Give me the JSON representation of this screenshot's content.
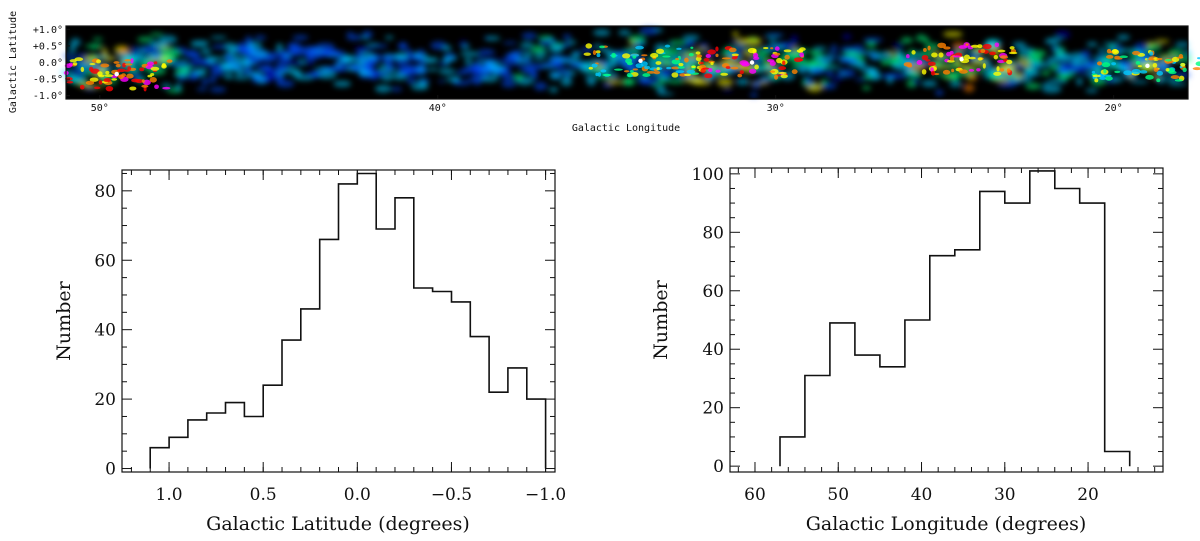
{
  "chart_data": [
    {
      "type": "heatmap",
      "title": "",
      "xlabel": "Galactic Longitude",
      "ylabel": "Galactic Latitude",
      "xlim": [
        51,
        17.8
      ],
      "ylim": [
        -1.1,
        1.1
      ],
      "x_ticks": [
        50,
        40,
        30,
        20
      ],
      "x_tick_labels": [
        "50°",
        "40°",
        "30°",
        "20°"
      ],
      "y_ticks": [
        1.0,
        0.5,
        0.0,
        -0.5,
        -1.0
      ],
      "y_tick_labels": [
        "+1.0°",
        "+0.5°",
        "0.0°",
        "-0.5°",
        "-1.0°"
      ],
      "colormap": [
        "#000000",
        "#0000b4",
        "#0050ff",
        "#00c8ff",
        "#00ff80",
        "#ffff00",
        "#ff8000",
        "#ff0000",
        "#ff00ff",
        "#ffffff"
      ],
      "bright_regions": [
        {
          "l": 49.5,
          "b": -0.35,
          "level": "peak"
        },
        {
          "l": 30.7,
          "b": 0.0,
          "level": "peak"
        },
        {
          "l": 24.5,
          "b": 0.1,
          "level": "peak"
        },
        {
          "l": 34.0,
          "b": 0.05,
          "level": "high"
        },
        {
          "l": 19.0,
          "b": -0.1,
          "level": "high"
        }
      ]
    },
    {
      "type": "bar",
      "style": "step",
      "title": "",
      "xlabel": "Galactic Latitude (degrees)",
      "ylabel": "Number",
      "xlim": [
        1.25,
        -1.05
      ],
      "ylim": [
        -1,
        86
      ],
      "x_ticks": [
        1.0,
        0.5,
        0.0,
        -0.5,
        -1.0
      ],
      "x_tick_labels": [
        "1.0",
        "0.5",
        "0.0",
        "−0.5",
        "−1.0"
      ],
      "y_ticks": [
        0,
        20,
        40,
        60,
        80
      ],
      "y_tick_labels": [
        "0",
        "20",
        "40",
        "60",
        "80"
      ],
      "bin_edges": [
        1.1,
        1.0,
        0.9,
        0.8,
        0.7,
        0.6,
        0.5,
        0.4,
        0.3,
        0.2,
        0.1,
        0.0,
        -0.1,
        -0.2,
        -0.3,
        -0.4,
        -0.5,
        -0.6,
        -0.7,
        -0.8,
        -0.9,
        -1.0
      ],
      "values": [
        6,
        9,
        14,
        16,
        19,
        15,
        24,
        37,
        46,
        66,
        82,
        85,
        69,
        78,
        52,
        51,
        48,
        38,
        22,
        29,
        20
      ]
    },
    {
      "type": "bar",
      "style": "step",
      "title": "",
      "xlabel": "Galactic Longitude (degrees)",
      "ylabel": "Number",
      "xlim": [
        63,
        11
      ],
      "ylim": [
        -2,
        102
      ],
      "x_ticks": [
        60,
        50,
        40,
        30,
        20
      ],
      "x_tick_labels": [
        "60",
        "50",
        "40",
        "30",
        "20"
      ],
      "y_ticks": [
        0,
        20,
        40,
        60,
        80,
        100
      ],
      "y_tick_labels": [
        "0",
        "20",
        "40",
        "60",
        "80",
        "100"
      ],
      "bin_edges": [
        57,
        54,
        51,
        48,
        45,
        42,
        39,
        36,
        33,
        30,
        27,
        24,
        21,
        18,
        15
      ],
      "values": [
        10,
        31,
        49,
        38,
        34,
        50,
        72,
        74,
        94,
        90,
        101,
        95,
        90,
        5
      ]
    }
  ]
}
